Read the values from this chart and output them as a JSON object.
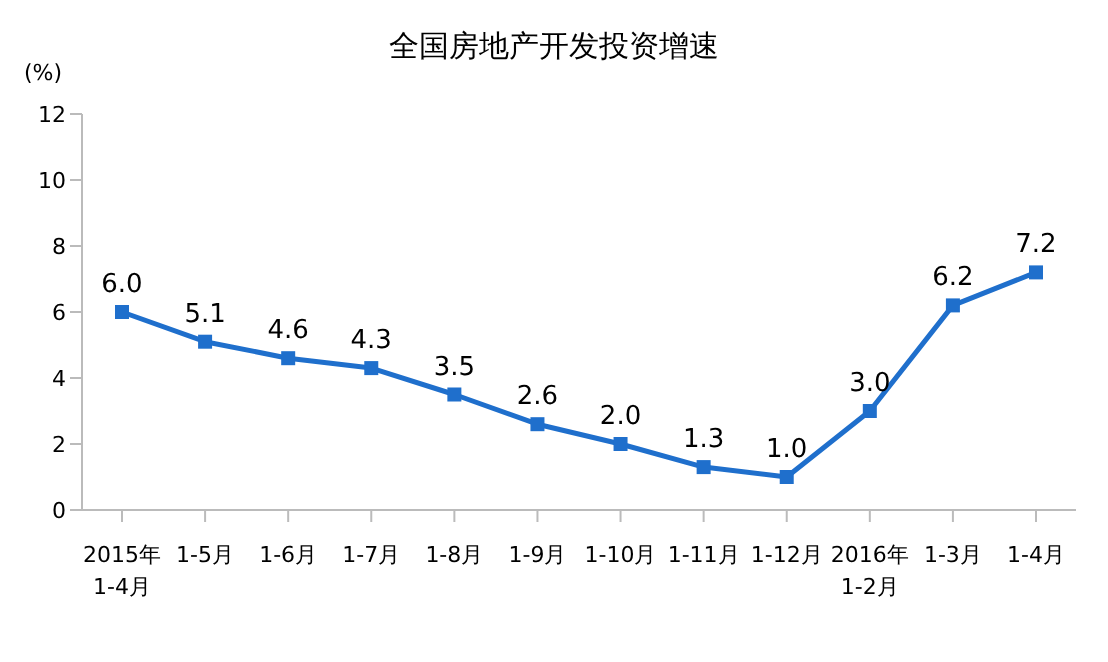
{
  "chart_data": {
    "type": "line",
    "title": "全国房地产开发投资增速",
    "ylabel": "(%)",
    "categories": [
      "2015年\n1-4月",
      "1-5月",
      "1-6月",
      "1-7月",
      "1-8月",
      "1-9月",
      "1-10月",
      "1-11月",
      "1-12月",
      "2016年\n1-2月",
      "1-3月",
      "1-4月"
    ],
    "series": [
      {
        "color": "#1f6fcc",
        "values": [
          6.0,
          5.1,
          4.6,
          4.3,
          3.5,
          2.6,
          2.0,
          1.3,
          1.0,
          3.0,
          6.2,
          7.2
        ],
        "value_labels": [
          "6.0",
          "5.1",
          "4.6",
          "4.3",
          "3.5",
          "2.6",
          "2.0",
          "1.3",
          "1.0",
          "3.0",
          "6.2",
          "7.2"
        ]
      }
    ],
    "ylim": [
      0,
      12
    ],
    "yticks": [
      0,
      2,
      4,
      6,
      8,
      10,
      12
    ],
    "grid": false,
    "legend": false,
    "marker": "square",
    "line_style": "solid"
  }
}
